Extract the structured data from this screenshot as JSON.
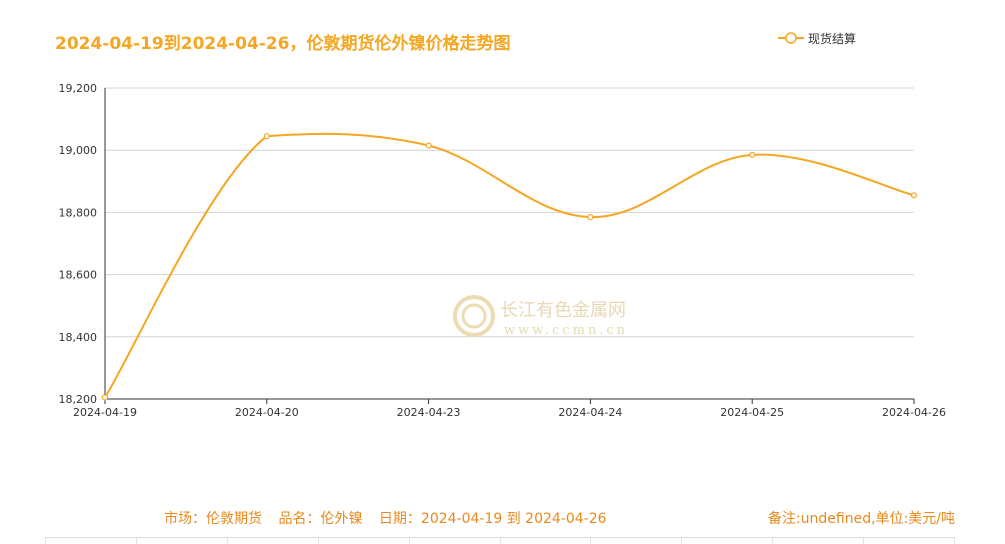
{
  "title": "2024-04-19到2024-04-26，伦敦期货伦外镍价格走势图",
  "legend": {
    "label": "现货结算",
    "color": "#f5a623"
  },
  "watermark": {
    "name": "长江有色金属网",
    "url": "www.ccmn.cn"
  },
  "chart_data": {
    "type": "line",
    "title": "2024-04-19到2024-04-26，伦敦期货伦外镍价格走势图",
    "categories": [
      "2024-04-19",
      "2024-04-20",
      "2024-04-23",
      "2024-04-24",
      "2024-04-25",
      "2024-04-26"
    ],
    "series": [
      {
        "name": "现货结算",
        "values": [
          18205,
          19045,
          19015,
          18785,
          18985,
          18855
        ],
        "color": "#f5a623"
      }
    ],
    "ylim": [
      18200,
      19200
    ],
    "yticks": [
      18200,
      18400,
      18600,
      18800,
      19000,
      19200
    ],
    "ytick_labels": [
      "18,200",
      "18,400",
      "18,600",
      "18,800",
      "19,000",
      "19,200"
    ],
    "grid": true,
    "legend_position": "top-right"
  },
  "footer": {
    "market": "市场：伦敦期货",
    "product": "品名：伦外镍",
    "date": "日期：2024-04-19 到 2024-04-26",
    "note": "备注:undefined,单位:美元/吨"
  }
}
